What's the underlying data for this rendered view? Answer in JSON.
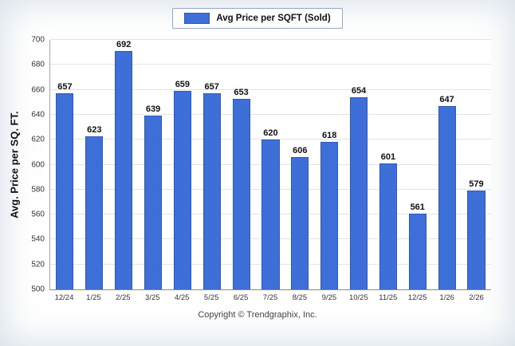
{
  "chart_data": {
    "type": "bar",
    "title": "",
    "legend_label": "Avg Price per SQFT (Sold)",
    "legend_position": "top-center",
    "categories": [
      "12/24",
      "1/25",
      "2/25",
      "3/25",
      "4/25",
      "5/25",
      "6/25",
      "7/25",
      "8/25",
      "9/25",
      "10/25",
      "11/25",
      "12/25",
      "1/26",
      "2/26"
    ],
    "values": [
      657,
      623,
      692,
      639,
      659,
      657,
      653,
      620,
      606,
      618,
      654,
      601,
      561,
      647,
      579
    ],
    "xlabel": "",
    "ylabel": "Avg. Price per SQ. FT.",
    "ylim": [
      500,
      700
    ],
    "yticks": [
      500,
      520,
      540,
      560,
      580,
      600,
      620,
      640,
      660,
      680,
      700
    ],
    "grid": true,
    "bar_color": "#3E6FD8",
    "bar_border_color": "#2B59BE"
  },
  "footer": {
    "copyright": "Copyright © Trendgraphix, Inc."
  }
}
